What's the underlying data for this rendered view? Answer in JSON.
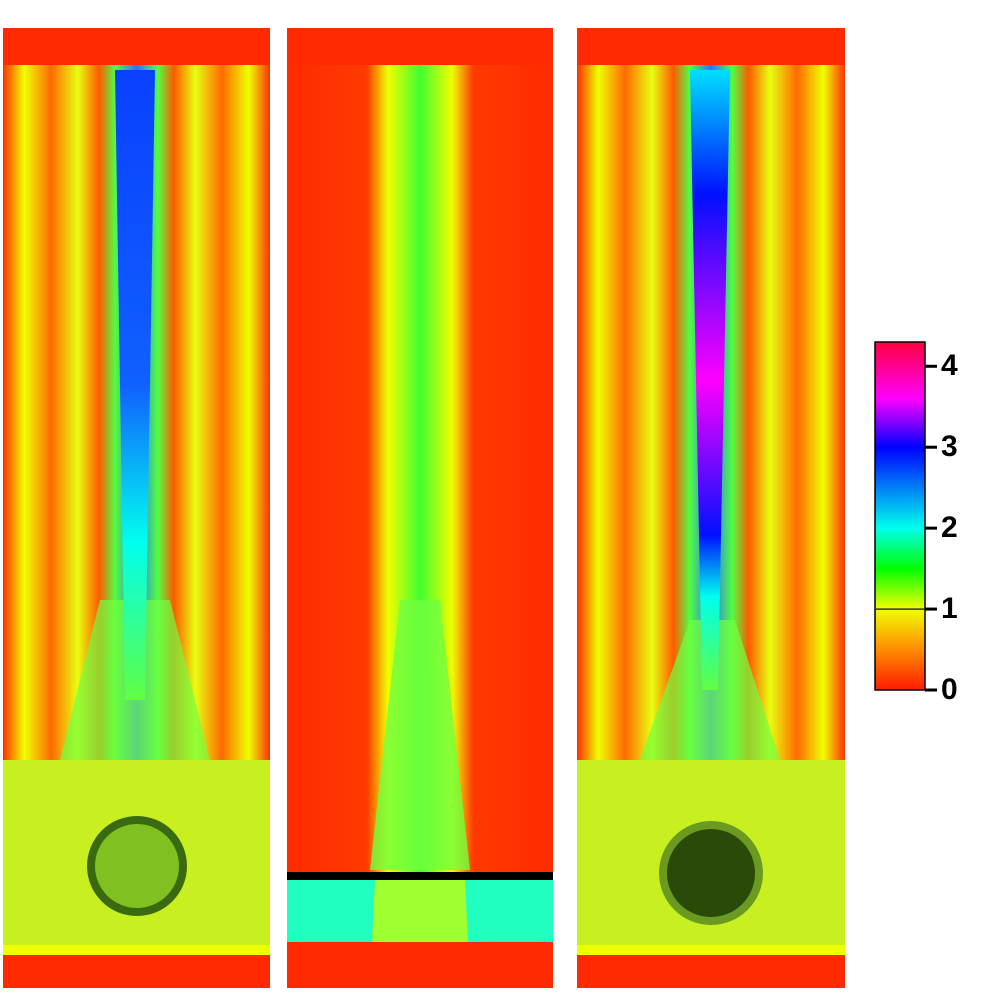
{
  "chart_data": {
    "type": "field-colorbar",
    "colorbar": {
      "lim": [
        0,
        4.3
      ],
      "ticks": [
        0,
        1,
        2,
        3,
        4
      ],
      "colors": [
        {
          "value": 0,
          "color": "#ff1a00"
        },
        {
          "value": 0.5,
          "color": "#ff8c00"
        },
        {
          "value": 1,
          "color": "#f0ff00"
        },
        {
          "value": 1.5,
          "color": "#00ff00"
        },
        {
          "value": 2,
          "color": "#00ffee"
        },
        {
          "value": 3,
          "color": "#0000ff"
        },
        {
          "value": 3.6,
          "color": "#ff00ff"
        },
        {
          "value": 4.3,
          "color": "#ff0040"
        }
      ],
      "line_at": 1
    }
  }
}
